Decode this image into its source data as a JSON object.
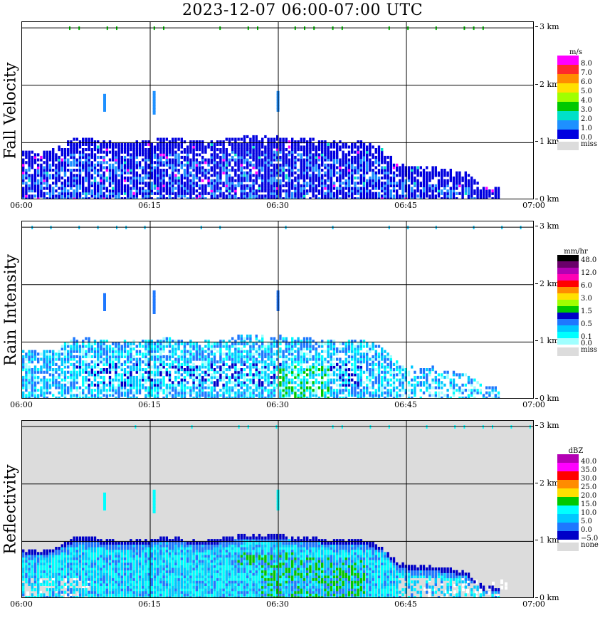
{
  "title": "2023-12-07   06:00-07:00 UTC",
  "x_ticks": [
    "06:00",
    "06:15",
    "06:30",
    "06:45",
    "07:00"
  ],
  "y_ticks": [
    "3 km",
    "2 km",
    "1 km",
    "0 km"
  ],
  "panels": [
    {
      "label": "Fall Velocity",
      "unit": "m/s",
      "legend": [
        {
          "label": "8.0",
          "color": "#ff00ff"
        },
        {
          "label": "7.0",
          "color": "#ff2a2a"
        },
        {
          "label": "6.0",
          "color": "#ff8c00"
        },
        {
          "label": "5.0",
          "color": "#ffe000"
        },
        {
          "label": "4.0",
          "color": "#a0ff00"
        },
        {
          "label": "3.0",
          "color": "#00c800"
        },
        {
          "label": "2.0",
          "color": "#00e0c8"
        },
        {
          "label": "1.0",
          "color": "#1e90ff"
        },
        {
          "label": "0.0",
          "color": "#0000e0"
        }
      ],
      "miss_label": "miss",
      "miss_color": "#dcdcdc",
      "background": "#ffffff"
    },
    {
      "label": "Rain Intensity",
      "unit": "mm/hr",
      "legend": [
        {
          "label": "48.0",
          "color": "#000000"
        },
        {
          "label": "",
          "color": "#6a006a"
        },
        {
          "label": "12.0",
          "color": "#b400b4"
        },
        {
          "label": "",
          "color": "#ff00b4"
        },
        {
          "label": "6.0",
          "color": "#ff0000"
        },
        {
          "label": "",
          "color": "#ff8c00"
        },
        {
          "label": "3.0",
          "color": "#ffe000"
        },
        {
          "label": "",
          "color": "#a0ff00"
        },
        {
          "label": "1.5",
          "color": "#00c800"
        },
        {
          "label": "",
          "color": "#0000c8"
        },
        {
          "label": "0.5",
          "color": "#1e78ff"
        },
        {
          "label": "",
          "color": "#00c8ff"
        },
        {
          "label": "0.1",
          "color": "#00ffff"
        },
        {
          "label": "0.0",
          "color": "#a0ffff"
        }
      ],
      "miss_label": "miss",
      "miss_color": "#dcdcdc",
      "background": "#ffffff"
    },
    {
      "label": "Reflectivity",
      "unit": "dBZ",
      "legend": [
        {
          "label": "40.0",
          "color": "#b400b4"
        },
        {
          "label": "35.0",
          "color": "#ff00ff"
        },
        {
          "label": "30.0",
          "color": "#ff0000"
        },
        {
          "label": "25.0",
          "color": "#ff8c00"
        },
        {
          "label": "20.0",
          "color": "#ffe000"
        },
        {
          "label": "15.0",
          "color": "#00c800"
        },
        {
          "label": "10.0",
          "color": "#00ffff"
        },
        {
          "label": "5.0",
          "color": "#00c8ff"
        },
        {
          "label": "0.0",
          "color": "#1e78ff"
        },
        {
          "label": "−5.0",
          "color": "#0000c8"
        }
      ],
      "miss_label": "none",
      "miss_color": "#dcdcdc",
      "background": "#dcdcdc"
    }
  ],
  "chart_data": {
    "type": "heatmap",
    "title": "2023-12-07   06:00-07:00 UTC",
    "x_range": [
      "06:00",
      "07:00"
    ],
    "y_range_km": [
      0,
      3.1
    ],
    "grid": true,
    "echo_profile": {
      "time_min": [
        0,
        2,
        4,
        6,
        8,
        10,
        12,
        14,
        16,
        18,
        20,
        22,
        24,
        26,
        28,
        30,
        32,
        34,
        36,
        38,
        40,
        42,
        44,
        46,
        48,
        50,
        52,
        54
      ],
      "top_km": [
        0.85,
        0.8,
        0.9,
        1.05,
        1.05,
        1.0,
        1.0,
        1.0,
        1.05,
        1.05,
        1.0,
        1.0,
        1.05,
        1.1,
        1.1,
        1.1,
        1.05,
        1.05,
        1.0,
        1.0,
        1.0,
        0.9,
        0.6,
        0.55,
        0.55,
        0.5,
        0.45,
        0.2
      ]
    },
    "series": [
      {
        "name": "Fall Velocity",
        "unit": "m/s",
        "dominant_range": [
          0.0,
          2.0
        ]
      },
      {
        "name": "Rain Intensity",
        "unit": "mm/hr",
        "dominant_range": [
          0.0,
          1.5
        ]
      },
      {
        "name": "Reflectivity",
        "unit": "dBZ",
        "dominant_range": [
          -5.0,
          15.0
        ]
      }
    ]
  }
}
